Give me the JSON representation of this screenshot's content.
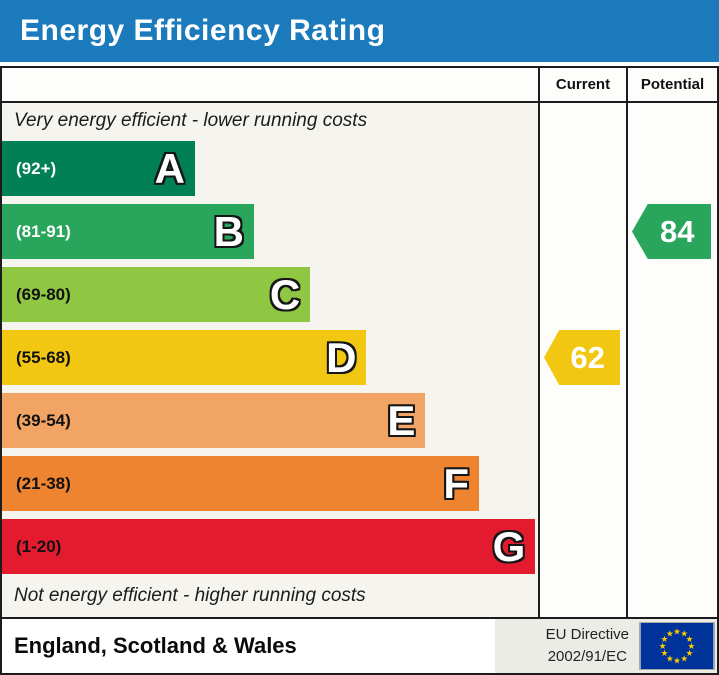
{
  "title": "Energy Efficiency Rating",
  "columns": {
    "current": "Current",
    "potential": "Potential"
  },
  "top_note": "Very energy efficient - lower running costs",
  "bottom_note": "Not energy efficient - higher running costs",
  "bands": [
    {
      "letter": "A",
      "range": "(92+)",
      "color": "#008054",
      "width_pct": 36,
      "label_color": "#ffffff"
    },
    {
      "letter": "B",
      "range": "(81-91)",
      "color": "#29a55c",
      "width_pct": 47,
      "label_color": "#ffffff"
    },
    {
      "letter": "C",
      "range": "(69-80)",
      "color": "#8fc743",
      "width_pct": 57.5,
      "label_color": "#111111"
    },
    {
      "letter": "D",
      "range": "(55-68)",
      "color": "#f2c712",
      "width_pct": 68,
      "label_color": "#111111"
    },
    {
      "letter": "E",
      "range": "(39-54)",
      "color": "#f2a465",
      "width_pct": 79,
      "label_color": "#111111"
    },
    {
      "letter": "F",
      "range": "(21-38)",
      "color": "#ee8430",
      "width_pct": 89,
      "label_color": "#111111"
    },
    {
      "letter": "G",
      "range": "(1-20)",
      "color": "#e41b2f",
      "width_pct": 99.5,
      "label_color": "#111111"
    }
  ],
  "current": {
    "value": "62",
    "band": "D"
  },
  "potential": {
    "value": "84",
    "band": "B"
  },
  "footer": {
    "region": "England, Scotland & Wales",
    "directive_line1": "EU Directive",
    "directive_line2": "2002/91/EC"
  },
  "icons": {
    "eu_flag": "eu-flag-icon"
  },
  "colors": {
    "header_bg": "#1a7abc",
    "border": "#1c1c1c",
    "chart_bg": "#f5f4ee",
    "eu_flag_blue": "#003399",
    "eu_star_yellow": "#ffcc00"
  },
  "chart_data": {
    "type": "bar",
    "title": "Energy Efficiency Rating",
    "orientation": "horizontal",
    "categories": [
      "A",
      "B",
      "C",
      "D",
      "E",
      "F",
      "G"
    ],
    "tick_labels": [
      "(92+)",
      "(81-91)",
      "(69-80)",
      "(55-68)",
      "(39-54)",
      "(21-38)",
      "(1-20)"
    ],
    "range_bounds": [
      [
        92,
        100
      ],
      [
        81,
        91
      ],
      [
        69,
        80
      ],
      [
        55,
        68
      ],
      [
        39,
        54
      ],
      [
        21,
        38
      ],
      [
        1,
        20
      ]
    ],
    "bar_colors": [
      "#008054",
      "#29a55c",
      "#8fc743",
      "#f2c712",
      "#f2a465",
      "#ee8430",
      "#e41b2f"
    ],
    "bar_relative_widths_pct": [
      36,
      47,
      57.5,
      68,
      79,
      89,
      99.5
    ],
    "markers": [
      {
        "label": "Current",
        "value": 62,
        "band": "D",
        "color": "#f2c712"
      },
      {
        "label": "Potential",
        "value": 84,
        "band": "B",
        "color": "#29a55c"
      }
    ],
    "annotations": [
      "Very energy efficient - lower running costs",
      "Not energy efficient - higher running costs"
    ],
    "footer": [
      "England, Scotland & Wales",
      "EU Directive 2002/91/EC"
    ],
    "legend_position": "none",
    "grid": false
  }
}
